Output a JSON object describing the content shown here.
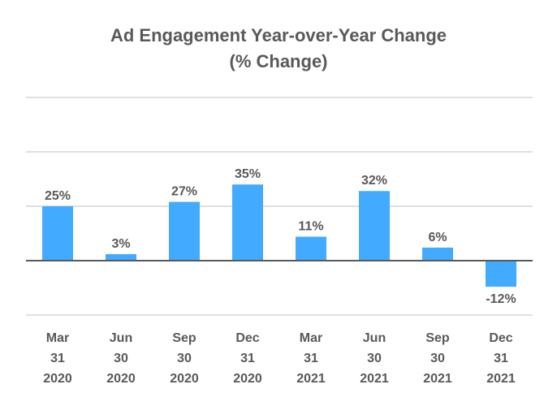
{
  "chart_data": {
    "type": "bar",
    "title_line1": "Ad Engagement Year-over-Year Change",
    "title_line2": "(% Change)",
    "categories": [
      [
        "Mar",
        "31",
        "2020"
      ],
      [
        "Jun",
        "30",
        "2020"
      ],
      [
        "Sep",
        "30",
        "2020"
      ],
      [
        "Dec",
        "31",
        "2020"
      ],
      [
        "Mar",
        "31",
        "2021"
      ],
      [
        "Jun",
        "30",
        "2021"
      ],
      [
        "Sep",
        "30",
        "2021"
      ],
      [
        "Dec",
        "31",
        "2021"
      ]
    ],
    "values": [
      25,
      3,
      27,
      35,
      11,
      32,
      6,
      -12
    ],
    "data_labels": [
      "25%",
      "3%",
      "27%",
      "35%",
      "11%",
      "32%",
      "6%",
      "-12%"
    ],
    "ylim": [
      -25,
      75
    ],
    "gridlines": [
      -25,
      25,
      50,
      75
    ],
    "grid": true,
    "legend": "none",
    "colors": {
      "bar": "#42aaff",
      "text": "#595959",
      "grid": "#e0e0e0",
      "axis": "#595959"
    }
  }
}
